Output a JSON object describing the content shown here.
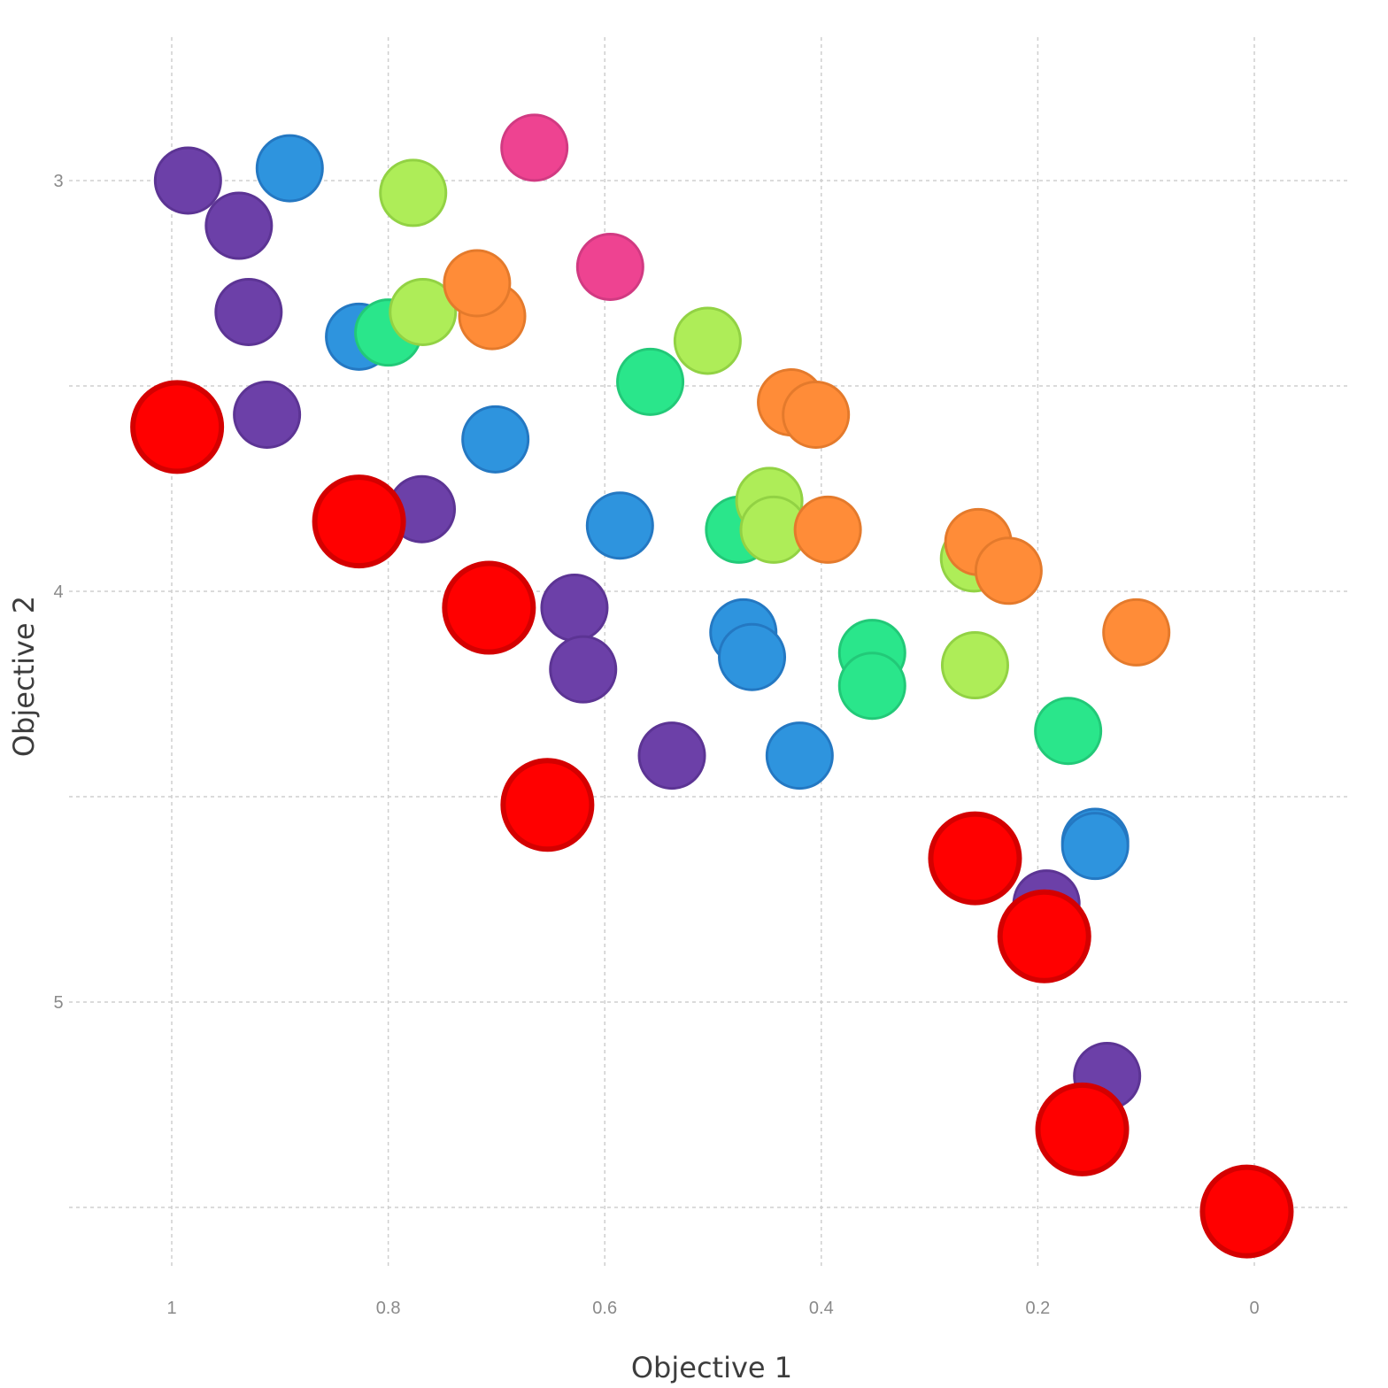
{
  "chart_data": {
    "type": "scatter",
    "title": "",
    "xlabel": "Objective 1",
    "ylabel": "Objective 2",
    "x_reversed": true,
    "y_reversed": true,
    "xlim": [
      1.0,
      0.0
    ],
    "ylim": [
      2.66,
      5.69
    ],
    "x_ticks": [
      1,
      0.8,
      0.6,
      0.4,
      0.2,
      0
    ],
    "x_tick_labels": [
      "1",
      "0.8",
      "0.6",
      "0.4",
      "0.2",
      "0"
    ],
    "y_ticks": [
      3,
      4,
      5
    ],
    "y_tick_labels": [
      "3",
      "4",
      "5"
    ],
    "y_minor_grid": [
      3.5,
      4.5,
      5.5
    ],
    "grid": true,
    "legend": "none",
    "series": [
      {
        "color": "#ee4391",
        "stroke": "#d13a82",
        "size": "medium",
        "points": [
          [
            0.665,
            2.92
          ],
          [
            0.595,
            3.21
          ]
        ]
      },
      {
        "color": "#6c40a8",
        "stroke": "#5c3494",
        "size": "medium",
        "points": [
          [
            0.985,
            3.0
          ],
          [
            0.938,
            3.11
          ],
          [
            0.929,
            3.32
          ],
          [
            0.912,
            3.57
          ],
          [
            0.769,
            3.8
          ],
          [
            0.628,
            4.04
          ],
          [
            0.62,
            4.19
          ],
          [
            0.538,
            4.4
          ],
          [
            0.192,
            4.76
          ],
          [
            0.136,
            5.18
          ]
        ]
      },
      {
        "color": "#2e94de",
        "stroke": "#2478c2",
        "size": "medium",
        "points": [
          [
            0.891,
            2.97
          ],
          [
            0.827,
            3.38
          ],
          [
            0.701,
            3.63
          ],
          [
            0.586,
            3.84
          ],
          [
            0.472,
            4.1
          ],
          [
            0.464,
            4.16
          ],
          [
            0.42,
            4.4
          ],
          [
            0.147,
            4.61
          ],
          [
            0.147,
            4.62
          ]
        ]
      },
      {
        "color": "#2ae68b",
        "stroke": "#22c978",
        "size": "medium",
        "points": [
          [
            0.8,
            3.37
          ],
          [
            0.558,
            3.49
          ],
          [
            0.476,
            3.85
          ],
          [
            0.353,
            4.15
          ],
          [
            0.353,
            4.23
          ],
          [
            0.172,
            4.34
          ]
        ]
      },
      {
        "color": "#aeed58",
        "stroke": "#92d244",
        "size": "medium",
        "points": [
          [
            0.777,
            3.03
          ],
          [
            0.768,
            3.32
          ],
          [
            0.505,
            3.39
          ],
          [
            0.448,
            3.78
          ],
          [
            0.444,
            3.85
          ],
          [
            0.259,
            3.92
          ],
          [
            0.258,
            4.18
          ]
        ]
      },
      {
        "color": "#ff8c38",
        "stroke": "#e47a2c",
        "size": "medium",
        "points": [
          [
            0.704,
            3.33
          ],
          [
            0.718,
            3.25
          ],
          [
            0.428,
            3.54
          ],
          [
            0.405,
            3.57
          ],
          [
            0.394,
            3.85
          ],
          [
            0.255,
            3.88
          ],
          [
            0.227,
            3.95
          ],
          [
            0.109,
            4.1
          ]
        ]
      },
      {
        "color": "#ff0000",
        "stroke": "#d40000",
        "size": "large",
        "points": [
          [
            0.995,
            3.6
          ],
          [
            0.827,
            3.83
          ],
          [
            0.707,
            4.04
          ],
          [
            0.653,
            4.52
          ],
          [
            0.258,
            4.65
          ],
          [
            0.194,
            4.84
          ],
          [
            0.159,
            5.31
          ],
          [
            0.007,
            5.51
          ]
        ]
      }
    ]
  }
}
